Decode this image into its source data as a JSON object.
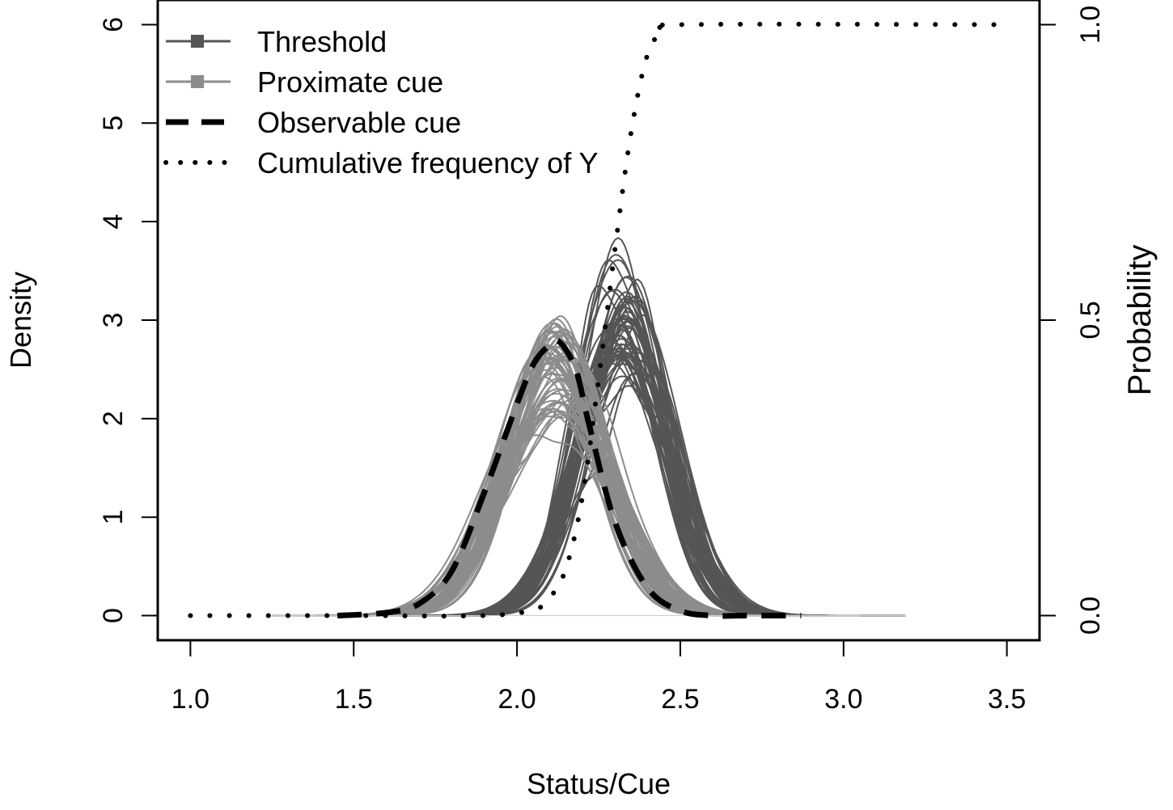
{
  "chart_data": {
    "type": "line",
    "title": "",
    "xlabel": "Status/Cue",
    "ylabel_left": "Density",
    "ylabel_right": "Probability",
    "xlim": [
      0.9,
      3.6
    ],
    "ylim_left": [
      -0.25,
      6.25
    ],
    "ylim_right": [
      0.0,
      1.0
    ],
    "x_ticks": [
      1.0,
      1.5,
      2.0,
      2.5,
      3.0,
      3.5
    ],
    "x_tick_labels": [
      "1.0",
      "1.5",
      "2.0",
      "2.5",
      "3.0",
      "3.5"
    ],
    "y_left_ticks": [
      0,
      1,
      2,
      3,
      4,
      5,
      6
    ],
    "y_left_tick_labels": [
      "0",
      "1",
      "2",
      "3",
      "4",
      "5",
      "6"
    ],
    "y_right_ticks": [
      0.0,
      0.5,
      1.0
    ],
    "y_right_tick_labels": [
      "0.0",
      "0.5",
      "1.0"
    ],
    "legend_position": "top-left",
    "grid": false,
    "colors": {
      "threshold": "#555555",
      "proximate": "#8c8c8c",
      "observable": "#000000",
      "cumulative": "#000000"
    },
    "series": [
      {
        "name": "Threshold",
        "style": "solid",
        "description_of_family": "many simulated density curves (replicates)",
        "replicates": 60,
        "center_x": 2.33,
        "sd_x": 0.135,
        "peak_range": [
          1.75,
          3.65
        ],
        "x_range": [
          1.25,
          3.19
        ]
      },
      {
        "name": "Proximate cue",
        "style": "solid",
        "replicates": 60,
        "center_x": 2.12,
        "sd_x": 0.155,
        "peak_range": [
          1.7,
          2.85
        ],
        "x_range": [
          1.25,
          3.05
        ]
      },
      {
        "name": "Observable cue",
        "style": "dashed",
        "x": [
          1.45,
          1.6,
          1.7,
          1.8,
          1.9,
          2.0,
          2.05,
          2.1,
          2.13,
          2.18,
          2.22,
          2.3,
          2.4,
          2.5,
          2.6,
          2.7,
          2.87
        ],
        "y": [
          0.0,
          0.03,
          0.12,
          0.45,
          1.25,
          2.15,
          2.55,
          2.75,
          2.78,
          2.5,
          1.95,
          0.95,
          0.28,
          0.05,
          0.0,
          0.0,
          0.0
        ]
      },
      {
        "name": "Cumulative frequency of Y",
        "style": "dotted",
        "axis": "right",
        "x": [
          1.0,
          1.5,
          1.9,
          2.05,
          2.1,
          2.15,
          2.2,
          2.25,
          2.3,
          2.35,
          2.4,
          2.45,
          2.5,
          3.5
        ],
        "y": [
          0.0,
          0.0,
          0.0,
          0.01,
          0.03,
          0.08,
          0.2,
          0.4,
          0.62,
          0.82,
          0.95,
          0.99,
          1.0,
          1.0
        ]
      }
    ],
    "legend": [
      {
        "label": "Threshold",
        "style": "solid-square"
      },
      {
        "label": "Proximate cue",
        "style": "solid-square"
      },
      {
        "label": "Observable cue",
        "style": "dashed"
      },
      {
        "label": "Cumulative frequency of Y",
        "style": "dotted"
      }
    ]
  }
}
